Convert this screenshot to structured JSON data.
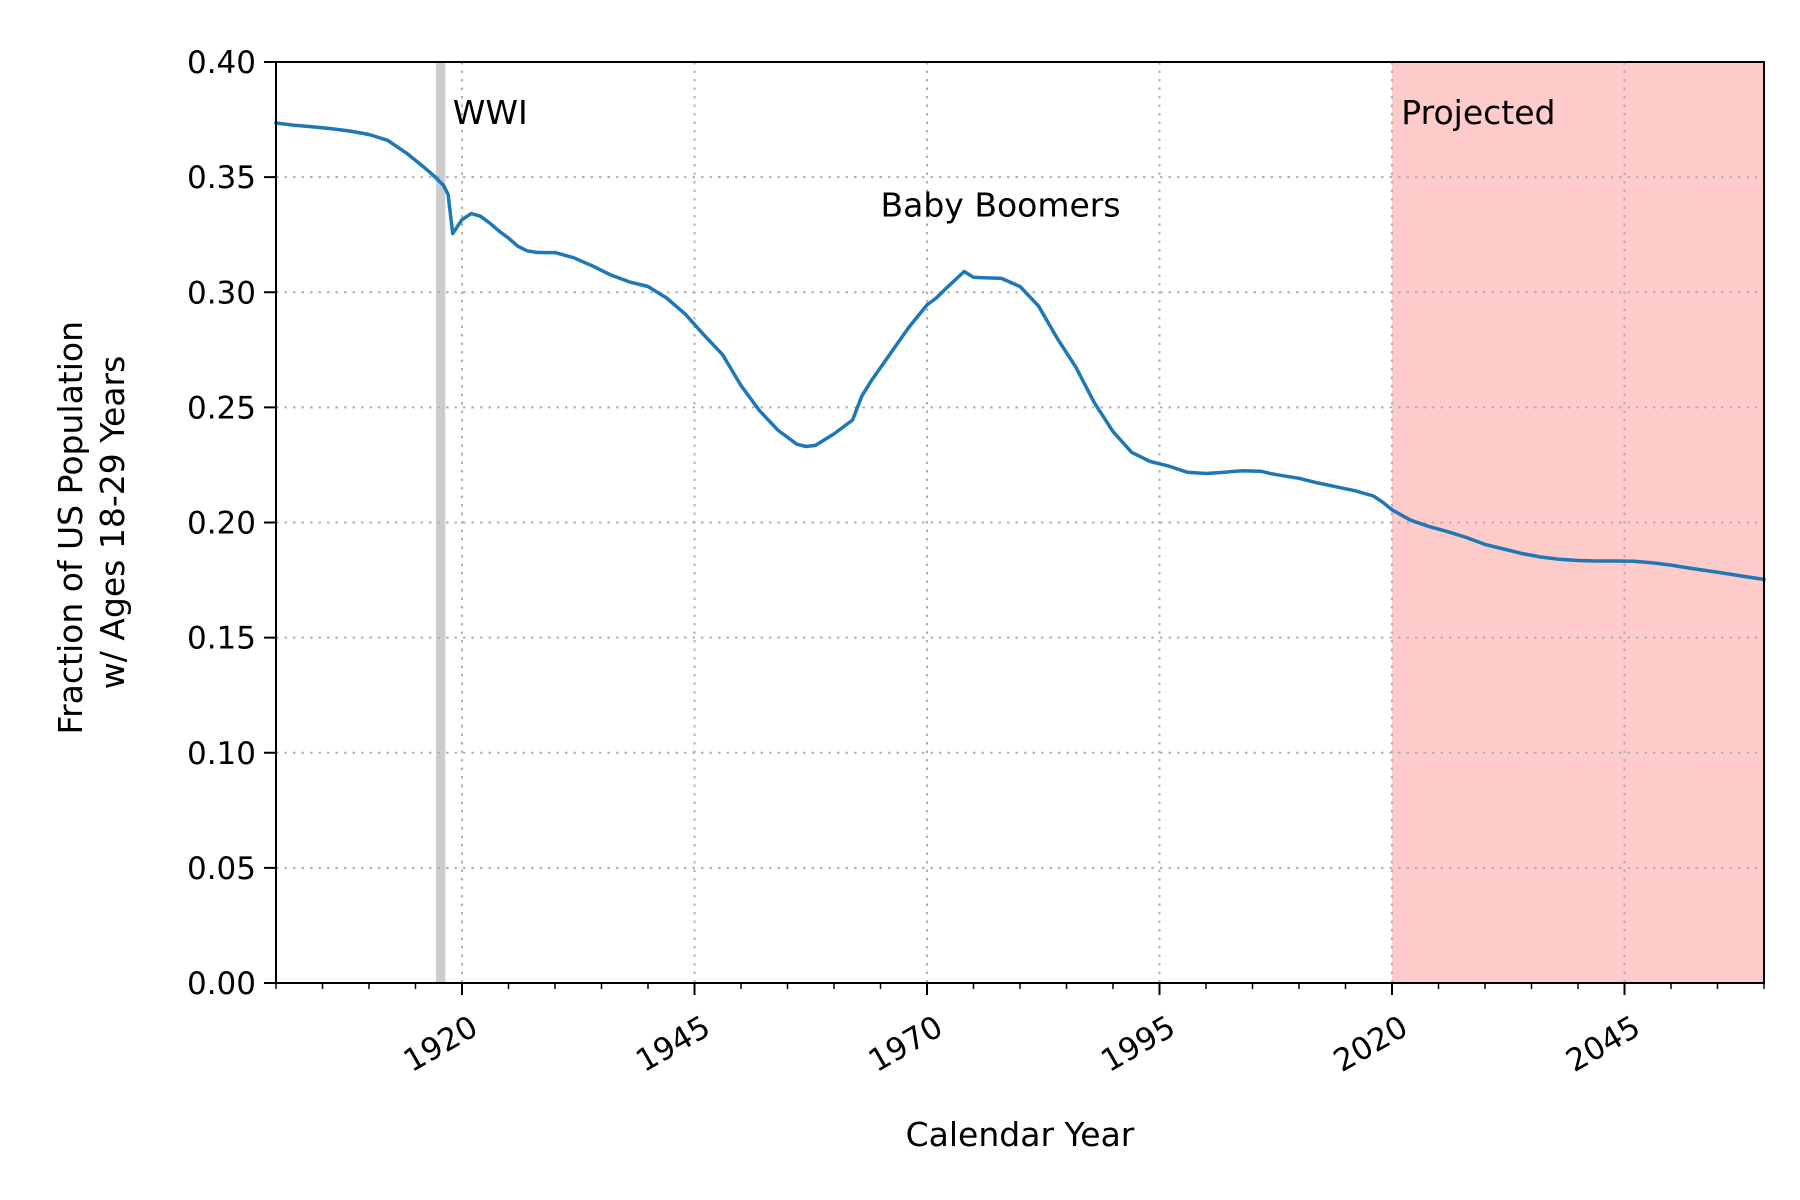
{
  "chart_data": {
    "type": "line",
    "xlabel": "Calendar Year",
    "ylabel_lines": [
      "Fraction of US Population",
      "w/ Ages 18-29 Years"
    ],
    "xlim": [
      1900,
      2060
    ],
    "ylim": [
      0.0,
      0.4
    ],
    "x_ticks": [
      1920,
      1945,
      1970,
      1995,
      2020,
      2045
    ],
    "x_minor_step": 5,
    "y_ticks": [
      0.0,
      0.05,
      0.1,
      0.15,
      0.2,
      0.25,
      0.3,
      0.35,
      0.4
    ],
    "grid": true,
    "line_color": "#1f77b4",
    "series": [
      {
        "x": [
          1900,
          1902,
          1904,
          1906,
          1908,
          1910,
          1912,
          1914,
          1916,
          1917,
          1918,
          1918.5,
          1919,
          1920,
          1921,
          1922,
          1923,
          1924,
          1925,
          1926,
          1927,
          1928,
          1929,
          1930,
          1932,
          1934,
          1936,
          1938,
          1940,
          1942,
          1944,
          1946,
          1948,
          1950,
          1952,
          1954,
          1956,
          1957,
          1958,
          1960,
          1962,
          1963,
          1964,
          1966,
          1968,
          1970,
          1971,
          1972,
          1974,
          1975,
          1976,
          1977,
          1978,
          1980,
          1982,
          1984,
          1986,
          1988,
          1990,
          1992,
          1994,
          1995,
          1996,
          1998,
          2000,
          2002,
          2003,
          2004,
          2006,
          2007,
          2008,
          2010,
          2012,
          2014,
          2016,
          2018,
          2019,
          2020,
          2022,
          2024,
          2026,
          2028,
          2030,
          2032,
          2034,
          2036,
          2038,
          2040,
          2042,
          2044,
          2046,
          2048,
          2050,
          2052,
          2054,
          2056,
          2058,
          2060
        ],
        "y": [
          0.3735,
          0.3725,
          0.3718,
          0.371,
          0.37,
          0.3685,
          0.366,
          0.3605,
          0.354,
          0.3505,
          0.3465,
          0.3425,
          0.3255,
          0.3315,
          0.3342,
          0.333,
          0.33,
          0.3265,
          0.3235,
          0.32,
          0.318,
          0.3173,
          0.3172,
          0.3172,
          0.315,
          0.3115,
          0.3075,
          0.3045,
          0.3025,
          0.2975,
          0.2905,
          0.2815,
          0.273,
          0.2595,
          0.2485,
          0.24,
          0.234,
          0.233,
          0.2335,
          0.2385,
          0.2445,
          0.255,
          0.2615,
          0.273,
          0.2845,
          0.2945,
          0.2975,
          0.3015,
          0.309,
          0.3065,
          0.3063,
          0.3062,
          0.306,
          0.3025,
          0.294,
          0.28,
          0.2675,
          0.252,
          0.2395,
          0.2305,
          0.2265,
          0.2255,
          0.2245,
          0.2218,
          0.2213,
          0.2218,
          0.2222,
          0.2225,
          0.2222,
          0.2212,
          0.2205,
          0.2192,
          0.2172,
          0.2155,
          0.2138,
          0.2115,
          0.2088,
          0.2055,
          0.201,
          0.1982,
          0.196,
          0.1935,
          0.1905,
          0.1885,
          0.1865,
          0.185,
          0.184,
          0.1835,
          0.1833,
          0.1833,
          0.1832,
          0.1825,
          0.1815,
          0.1802,
          0.179,
          0.1778,
          0.1765,
          0.1753
        ]
      }
    ],
    "spans": [
      {
        "type": "vertical-band",
        "x": [
          1917.2,
          1918.2
        ],
        "color": "#cccccc"
      },
      {
        "type": "shaded-region",
        "x": [
          2020,
          2060
        ],
        "color": "#fdcbca"
      }
    ],
    "annotations": [
      {
        "text": "WWI",
        "x": 1919,
        "y": 0.373
      },
      {
        "text": "Baby Boomers",
        "x": 1965,
        "y": 0.333
      },
      {
        "text": "Projected",
        "x": 2021,
        "y": 0.373
      }
    ]
  }
}
